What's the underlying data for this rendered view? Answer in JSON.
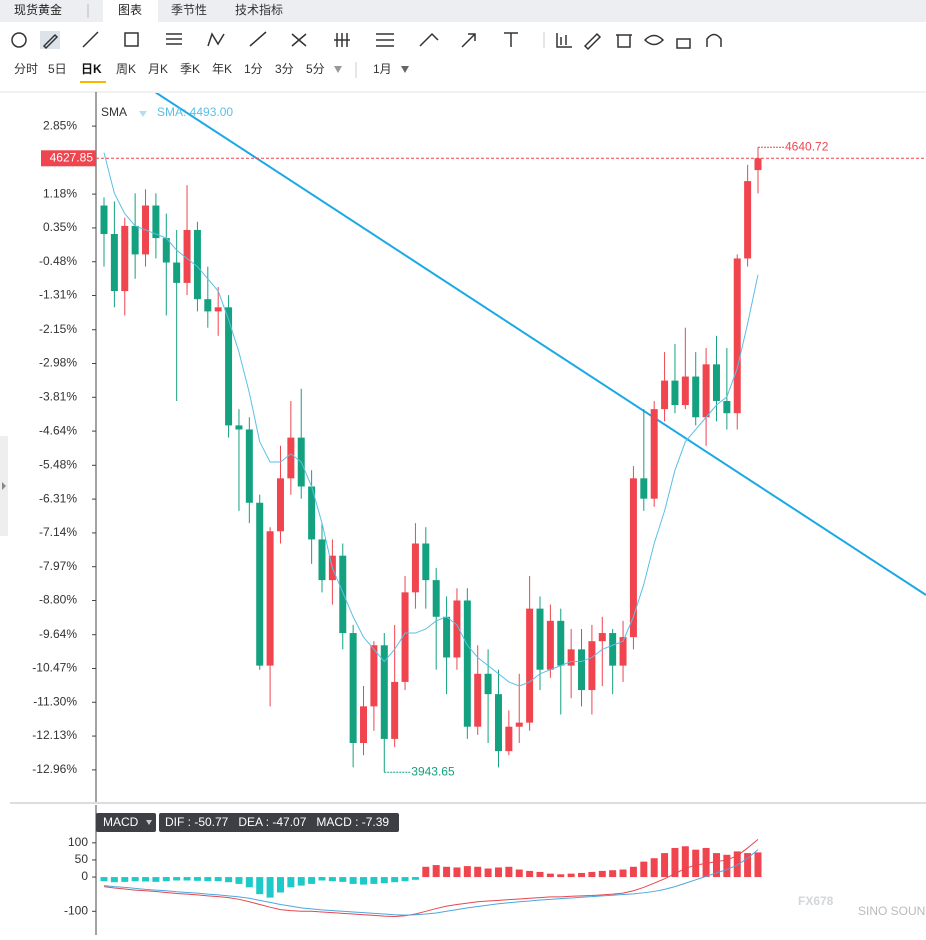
{
  "header": {
    "title": "现货黄金",
    "tabs": [
      "图表",
      "季节性",
      "技术指标"
    ]
  },
  "periods": [
    "分时",
    "5日",
    "日K",
    "周K",
    "月K",
    "季K",
    "年K",
    "1分",
    "3分",
    "5分"
  ],
  "range": "1月",
  "watermark": "FX678",
  "watermark_sub": "SINO SOUND",
  "chart_data": [
    {
      "type": "candlestick",
      "up_color": "#f0444f",
      "down_color": "#14a17f",
      "open": [
        0.9,
        0.2,
        -1.2,
        0.4,
        -0.3,
        0.9,
        0.1,
        -0.5,
        -1.0,
        0.3,
        -1.4,
        -1.7,
        -1.6,
        -4.5,
        -4.6,
        -6.4,
        -10.4,
        -7.1,
        -5.8,
        -4.8,
        -6.0,
        -7.3,
        -8.3,
        -7.7,
        -9.6,
        -12.3,
        -11.4,
        -9.9,
        -12.2,
        -10.8,
        -8.6,
        -7.4,
        -8.3,
        -9.2,
        -10.2,
        -8.8,
        -11.9,
        -10.6,
        -11.1,
        -12.5,
        -11.9,
        -11.8,
        -9.0,
        -10.5,
        -9.3,
        -10.4,
        -10.0,
        -11.0,
        -9.8,
        -9.6,
        -10.4,
        -9.7,
        -5.8,
        -6.3,
        -4.1,
        -3.4,
        -4.0,
        -3.3,
        -4.3,
        -3.0,
        -3.9,
        -4.2,
        -0.4,
        1.77
      ],
      "high": [
        1.1,
        1.0,
        0.6,
        1.2,
        1.3,
        1.2,
        0.7,
        0.3,
        1.4,
        0.5,
        -0.6,
        -1.1,
        -1.3,
        -4.1,
        -4.3,
        -6.2,
        -7.0,
        -5.0,
        -3.9,
        -3.6,
        -5.6,
        -6.9,
        -7.3,
        -7.4,
        -9.4,
        -10.9,
        -9.8,
        -9.6,
        -9.4,
        -8.2,
        -6.9,
        -7.0,
        -8.0,
        -8.7,
        -8.5,
        -8.5,
        -9.9,
        -10.0,
        -10.5,
        -11.5,
        -10.6,
        -8.2,
        -8.7,
        -8.9,
        -9.0,
        -9.5,
        -9.5,
        -9.4,
        -9.2,
        -9.5,
        -9.3,
        -5.5,
        -4.1,
        -3.9,
        -2.7,
        -2.5,
        -2.1,
        -2.7,
        -2.6,
        -2.3,
        -2.6,
        -0.3,
        1.9,
        2.33
      ],
      "low": [
        -0.6,
        -1.6,
        -1.8,
        -0.9,
        -0.6,
        -0.4,
        -1.8,
        -3.9,
        -1.3,
        -1.7,
        -2.1,
        -2.3,
        -4.8,
        -6.6,
        -6.9,
        -10.5,
        -11.4,
        -7.4,
        -6.2,
        -6.3,
        -7.9,
        -8.6,
        -8.9,
        -10.0,
        -12.9,
        -12.6,
        -12.0,
        -13.02,
        -12.4,
        -11.0,
        -9.0,
        -9.0,
        -10.5,
        -11.1,
        -10.5,
        -12.2,
        -12.1,
        -12.3,
        -12.9,
        -12.6,
        -12.3,
        -12.0,
        -11.0,
        -10.7,
        -11.6,
        -11.2,
        -11.4,
        -11.6,
        -10.9,
        -11.1,
        -10.8,
        -10.0,
        -6.6,
        -6.5,
        -4.4,
        -4.2,
        -4.1,
        -4.5,
        -5.0,
        -4.4,
        -4.6,
        -4.6,
        -0.6,
        1.2
      ],
      "close": [
        0.2,
        -1.2,
        0.4,
        -0.3,
        0.9,
        0.1,
        -0.5,
        -1.0,
        0.3,
        -1.4,
        -1.7,
        -1.6,
        -4.5,
        -4.6,
        -6.4,
        -10.4,
        -7.1,
        -5.8,
        -4.8,
        -6.0,
        -7.3,
        -8.3,
        -7.7,
        -9.6,
        -12.3,
        -11.4,
        -9.9,
        -12.2,
        -10.8,
        -8.6,
        -7.4,
        -8.3,
        -9.2,
        -10.2,
        -8.8,
        -11.9,
        -10.6,
        -11.1,
        -12.5,
        -11.9,
        -11.8,
        -9.0,
        -10.5,
        -9.3,
        -10.4,
        -10.0,
        -11.0,
        -9.8,
        -9.6,
        -10.4,
        -9.7,
        -5.8,
        -6.3,
        -4.1,
        -3.4,
        -4.0,
        -3.3,
        -4.3,
        -3.0,
        -3.9,
        -4.2,
        -0.4,
        1.5,
        2.06
      ],
      "sma": {
        "name": "SMA",
        "label": "SMA: 4493.00",
        "color": "#5bbfe6",
        "values": [
          2.2,
          1.2,
          0.7,
          0.4,
          0.3,
          0.2,
          0.1,
          -0.2,
          -0.4,
          -0.6,
          -0.9,
          -1.2,
          -1.9,
          -2.7,
          -3.7,
          -4.9,
          -5.4,
          -5.4,
          -5.2,
          -5.4,
          -6.0,
          -6.9,
          -8.0,
          -8.6,
          -9.2,
          -9.7,
          -10.0,
          -10.3,
          -10.0,
          -9.6,
          -9.6,
          -9.5,
          -9.3,
          -9.2,
          -9.4,
          -9.9,
          -10.2,
          -10.4,
          -10.6,
          -10.8,
          -10.9,
          -10.8,
          -10.6,
          -10.5,
          -10.4,
          -10.3,
          -10.3,
          -10.2,
          -10.0,
          -9.9,
          -9.8,
          -9.2,
          -8.4,
          -7.4,
          -6.6,
          -5.6,
          -4.9,
          -4.6,
          -4.3,
          -4.0,
          -3.8,
          -3.1,
          -2.0,
          -0.8
        ]
      },
      "last_label": "4627.85",
      "max_label": "4640.72",
      "min_label": "3943.65",
      "ylim": [
        -13.7,
        3.59
      ],
      "yticks": [
        {
          "value": 2.85,
          "label": "2.85%"
        },
        {
          "value": 1.18,
          "label": "1.18%"
        },
        {
          "value": 0.35,
          "label": "0.35%"
        },
        {
          "value": -0.48,
          "label": "-0.48%"
        },
        {
          "value": -1.31,
          "label": "-1.31%"
        },
        {
          "value": -2.15,
          "label": "-2.15%"
        },
        {
          "value": -2.98,
          "label": "-2.98%"
        },
        {
          "value": -3.81,
          "label": "-3.81%"
        },
        {
          "value": -4.64,
          "label": "-4.64%"
        },
        {
          "value": -5.48,
          "label": "-5.48%"
        },
        {
          "value": -6.31,
          "label": "-6.31%"
        },
        {
          "value": -7.14,
          "label": "-7.14%"
        },
        {
          "value": -7.97,
          "label": "-7.97%"
        },
        {
          "value": -8.8,
          "label": "-8.80%"
        },
        {
          "value": -9.64,
          "label": "-9.64%"
        },
        {
          "value": -10.47,
          "label": "-10.47%"
        },
        {
          "value": -11.3,
          "label": "-11.30%"
        },
        {
          "value": -12.13,
          "label": "-12.13%"
        },
        {
          "value": -12.96,
          "label": "-12.96%"
        }
      ]
    },
    {
      "type": "macd",
      "indicator": "MACD",
      "readout": "DIF : -50.77   DEA : -47.07   MACD : -7.39",
      "up_color": "#f0444f",
      "down_color": "#1ec9c9",
      "values": [
        -12,
        -15,
        -14,
        -12,
        -13,
        -14,
        -12,
        -10,
        -10,
        -11,
        -12,
        -12,
        -15,
        -20,
        -30,
        -50,
        -60,
        -45,
        -30,
        -25,
        -20,
        -10,
        -12,
        -14,
        -20,
        -22,
        -20,
        -18,
        -15,
        -12,
        -8,
        30,
        35,
        30,
        28,
        32,
        30,
        25,
        28,
        30,
        22,
        18,
        15,
        10,
        8,
        10,
        12,
        15,
        18,
        20,
        22,
        30,
        45,
        55,
        70,
        85,
        90,
        80,
        85,
        70,
        65,
        75,
        70,
        72
      ],
      "series": [
        {
          "color": "#e8464f",
          "values": [
            -28,
            -32,
            -35,
            -38,
            -40,
            -42,
            -45,
            -48,
            -50,
            -52,
            -55,
            -57,
            -60,
            -65,
            -72,
            -80,
            -88,
            -95,
            -98,
            -100,
            -100,
            -102,
            -104,
            -106,
            -108,
            -110,
            -112,
            -114,
            -115,
            -113,
            -108,
            -100,
            -92,
            -85,
            -80,
            -76,
            -72,
            -70,
            -68,
            -66,
            -64,
            -62,
            -60,
            -58,
            -58,
            -56,
            -55,
            -54,
            -52,
            -50,
            -47,
            -40,
            -30,
            -18,
            -5,
            10,
            25,
            35,
            40,
            45,
            50,
            62,
            85,
            110
          ]
        },
        {
          "color": "#4aa8e0",
          "values": [
            -25,
            -28,
            -30,
            -33,
            -36,
            -38,
            -40,
            -43,
            -45,
            -47,
            -50,
            -52,
            -55,
            -58,
            -62,
            -68,
            -74,
            -80,
            -85,
            -90,
            -93,
            -96,
            -98,
            -100,
            -102,
            -104,
            -106,
            -108,
            -110,
            -111,
            -110,
            -108,
            -105,
            -100,
            -95,
            -90,
            -86,
            -82,
            -78,
            -75,
            -72,
            -70,
            -67,
            -65,
            -63,
            -61,
            -59,
            -57,
            -55,
            -53,
            -51,
            -49,
            -46,
            -42,
            -36,
            -28,
            -18,
            -8,
            2,
            12,
            22,
            35,
            55,
            80
          ]
        }
      ],
      "ylim": [
        -140,
        190
      ],
      "yticks": [
        100,
        50,
        0,
        -100
      ]
    }
  ]
}
